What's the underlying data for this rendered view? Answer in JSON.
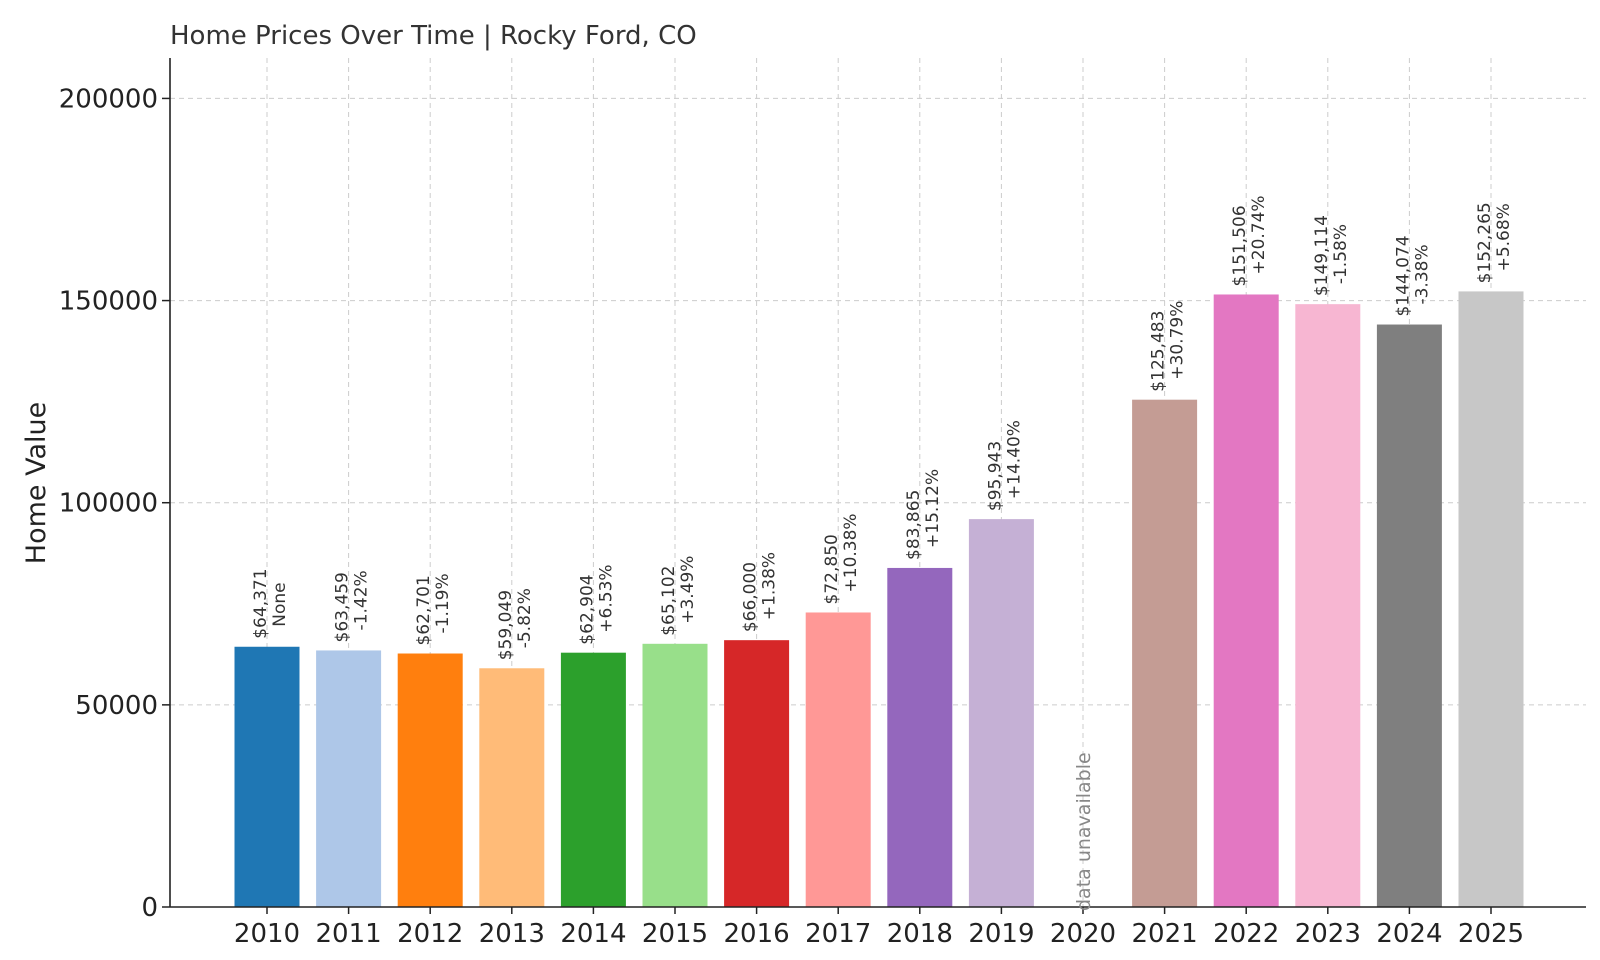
{
  "chart_data": {
    "type": "bar",
    "title": "Home Prices Over Time | Rocky Ford, CO",
    "xlabel": "",
    "ylabel": "Home Value",
    "ylim": [
      0,
      210000
    ],
    "yticks": [
      0,
      50000,
      100000,
      150000,
      200000
    ],
    "ytick_labels": [
      "0",
      "50000",
      "100000",
      "150000",
      "200000"
    ],
    "grid": true,
    "categories": [
      "2010",
      "2011",
      "2012",
      "2013",
      "2014",
      "2015",
      "2016",
      "2017",
      "2018",
      "2019",
      "2020",
      "2021",
      "2022",
      "2023",
      "2024",
      "2025"
    ],
    "values": [
      64371,
      63459,
      62701,
      59049,
      62904,
      65102,
      66000,
      72850,
      83865,
      95943,
      null,
      125483,
      151506,
      149114,
      144074,
      152265
    ],
    "value_labels": [
      "$64,371",
      "$63,459",
      "$62,701",
      "$59,049",
      "$62,904",
      "$65,102",
      "$66,000",
      "$72,850",
      "$83,865",
      "$95,943",
      "",
      "$125,483",
      "$151,506",
      "$149,114",
      "$144,074",
      "$152,265"
    ],
    "change_labels": [
      "None",
      "-1.42%",
      "-1.19%",
      "-5.82%",
      "+6.53%",
      "+3.49%",
      "+1.38%",
      "+10.38%",
      "+15.12%",
      "+14.40%",
      "",
      "+30.79%",
      "+20.74%",
      "-1.58%",
      "-3.38%",
      "+5.68%"
    ],
    "colors": [
      "#1f77b4",
      "#aec7e8",
      "#ff7f0e",
      "#ffbb78",
      "#2ca02c",
      "#98df8a",
      "#d62728",
      "#ff9896",
      "#9467bd",
      "#c5b0d5",
      "#8c564b",
      "#c49c94",
      "#e377c2",
      "#f7b6d2",
      "#7f7f7f",
      "#c7c7c7"
    ],
    "missing_label": "data unavailable"
  }
}
